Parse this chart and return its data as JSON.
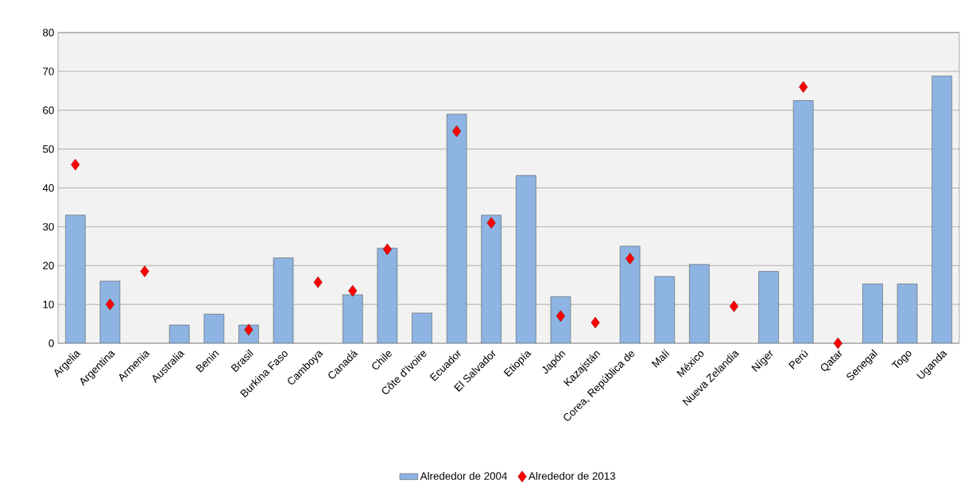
{
  "chart_data": {
    "type": "bar",
    "categories": [
      "Argelia",
      "Argentina",
      "Armenia",
      "Australia",
      "Benin",
      "Brasil",
      "Burkina Faso",
      "Camboya",
      "Canadá",
      "Chile",
      "Côte d'Ivoire",
      "Ecuador",
      "El Salvador",
      "Etiopía",
      "Japón",
      "Kazajstán",
      "Corea, República de",
      "Malí",
      "México",
      "Nueva Zelandia",
      "Níger",
      "Perú",
      "Qatar",
      "Senegal",
      "Togo",
      "Uganda"
    ],
    "series": [
      {
        "name": "Alrededor de 2004",
        "color": "#8db4e2",
        "values": [
          33,
          16,
          null,
          4.7,
          7.5,
          4.7,
          22,
          null,
          12.5,
          24.5,
          7.8,
          59,
          33,
          43.2,
          12,
          null,
          25,
          17.2,
          20.3,
          null,
          18.5,
          62.5,
          null,
          15.3,
          15.3,
          68.8
        ]
      },
      {
        "name": "Alrededor de 2013",
        "type": "scatter",
        "color": "#ff0000",
        "marker": "diamond",
        "values": [
          46,
          10,
          18.5,
          null,
          null,
          3.5,
          null,
          15.7,
          13.5,
          24.2,
          null,
          54.6,
          31,
          null,
          7,
          5.3,
          21.8,
          null,
          null,
          9.5,
          null,
          66,
          0,
          null,
          null,
          null
        ]
      }
    ],
    "ylim": [
      0,
      80
    ],
    "yticks": [
      0,
      10,
      20,
      30,
      40,
      50,
      60,
      70,
      80
    ],
    "grid": "y",
    "legend": "bottom"
  }
}
